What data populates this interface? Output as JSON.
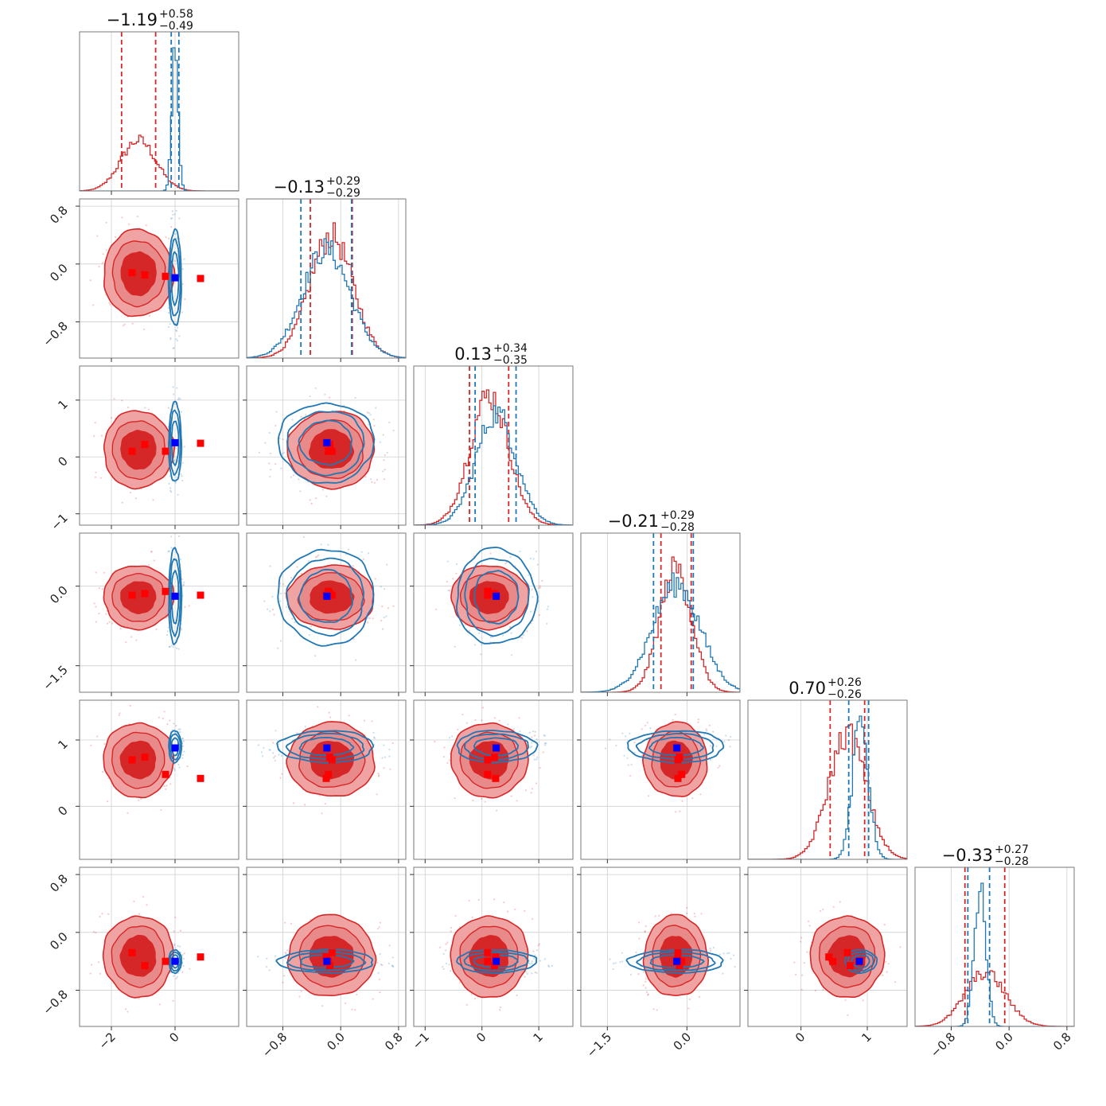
{
  "chart_data": {
    "type": "corner",
    "n_params": 6,
    "titles": [
      {
        "median": "−1.19",
        "plus": "+0.58",
        "minus": "−0.49"
      },
      {
        "median": "−0.13",
        "plus": "+0.29",
        "minus": "−0.29"
      },
      {
        "median": "0.13",
        "plus": "+0.34",
        "minus": "−0.35"
      },
      {
        "median": "−0.21",
        "plus": "+0.29",
        "minus": "−0.28"
      },
      {
        "median": "0.70",
        "plus": "+0.26",
        "minus": "−0.26"
      },
      {
        "median": "−0.33",
        "plus": "+0.27",
        "minus": "−0.28"
      }
    ],
    "ranges": [
      [
        -3.0,
        2.0
      ],
      [
        -1.3,
        0.9
      ],
      [
        -1.2,
        1.6
      ],
      [
        -2.0,
        1.0
      ],
      [
        -0.8,
        1.6
      ],
      [
        -1.3,
        0.9
      ]
    ],
    "ticks": [
      {
        "values": [
          -2,
          0
        ],
        "labels": [
          "−2",
          "0"
        ]
      },
      {
        "values": [
          -0.8,
          0.0,
          0.8
        ],
        "labels": [
          "−0.8",
          "0.0",
          "0.8"
        ]
      },
      {
        "values": [
          -1,
          0,
          1
        ],
        "labels": [
          "−1",
          "0",
          "1"
        ]
      },
      {
        "values": [
          -1.5,
          0.0
        ],
        "labels": [
          "−1.5",
          "0.0"
        ]
      },
      {
        "values": [
          0,
          1
        ],
        "labels": [
          "0",
          "1"
        ]
      },
      {
        "values": [
          -0.8,
          0.0,
          0.8
        ],
        "labels": [
          "−0.8",
          "0.0",
          "0.8"
        ]
      }
    ],
    "series": [
      {
        "color": "#d62728",
        "mean": [
          -1.15,
          -0.13,
          0.13,
          -0.21,
          0.7,
          -0.33
        ],
        "sigma": [
          0.55,
          0.3,
          0.34,
          0.3,
          0.28,
          0.28
        ],
        "quantile_lines": [
          [
            -1.68,
            -0.61
          ],
          [
            -0.42,
            0.16
          ],
          [
            -0.22,
            0.47
          ],
          [
            -0.49,
            0.08
          ],
          [
            0.44,
            0.96
          ],
          [
            -0.61,
            -0.06
          ]
        ]
      },
      {
        "color": "#1f77b4",
        "mean": [
          0.0,
          -0.2,
          0.25,
          -0.2,
          0.9,
          -0.4
        ],
        "sigma": [
          0.1,
          0.33,
          0.35,
          0.45,
          0.12,
          0.08
        ],
        "quantile_lines": [
          [
            -0.12,
            0.12
          ],
          [
            -0.55,
            0.15
          ],
          [
            -0.12,
            0.6
          ],
          [
            -0.63,
            0.12
          ],
          [
            0.72,
            1.02
          ],
          [
            -0.57,
            -0.27
          ]
        ]
      }
    ],
    "truth_markers": {
      "blue": {
        "color": "#0000ff",
        "point": [
          0.0,
          -0.19,
          0.25,
          -0.19,
          0.88,
          -0.4
        ]
      },
      "red": {
        "color": "#ff0000",
        "points": [
          [
            -1.35,
            -0.12,
            0.1,
            -0.17,
            0.7,
            -0.28
          ],
          [
            -0.95,
            -0.15,
            0.22,
            -0.14,
            0.74,
            -0.46
          ],
          [
            -0.3,
            -0.17,
            0.1,
            -0.1,
            0.48,
            -0.4
          ],
          [
            0.8,
            -0.2,
            0.24,
            -0.17,
            0.42,
            -0.34
          ]
        ]
      }
    }
  }
}
